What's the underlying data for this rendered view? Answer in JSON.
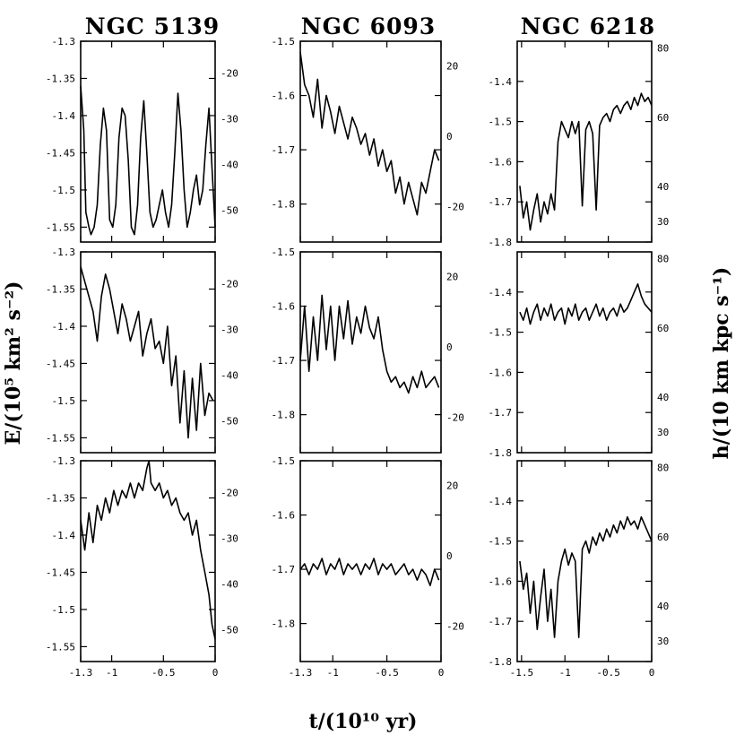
{
  "figure": {
    "x_label": "t/(10¹⁰ yr)",
    "y_left_label": "E/(10⁵ km² s⁻²)",
    "y_right_label": "h/(10 km kpc s⁻¹)",
    "column_titles": [
      "NGC 5139",
      "NGC 6093",
      "NGC 6218"
    ]
  },
  "chart_data": [
    {
      "type": "line",
      "cluster": "NGC 5139",
      "row": 1,
      "xlim": [
        -1.3,
        0
      ],
      "ylim": [
        -1.57,
        -1.3
      ],
      "ylim_right": [
        -57,
        -13
      ],
      "xticks": [
        -1.3,
        -1,
        -0.5,
        0
      ],
      "xtick_labels": [
        "-1.3",
        "-1",
        "-0.5",
        "0"
      ],
      "yticks": [
        -1.3,
        -1.35,
        -1.4,
        -1.45,
        -1.5,
        -1.55
      ],
      "ytick_labels": [
        "-1.3",
        "-1.35",
        "-1.4",
        "-1.45",
        "-1.5",
        "-1.55"
      ],
      "yticks_right": [
        -20,
        -30,
        -40,
        -50
      ],
      "ytick_right_labels": [
        "-20",
        "-30",
        "-40",
        "-50"
      ],
      "x": [
        -1.3,
        -1.27,
        -1.25,
        -1.22,
        -1.2,
        -1.17,
        -1.14,
        -1.11,
        -1.08,
        -1.05,
        -1.02,
        -0.99,
        -0.96,
        -0.93,
        -0.9,
        -0.87,
        -0.84,
        -0.81,
        -0.78,
        -0.75,
        -0.72,
        -0.69,
        -0.66,
        -0.63,
        -0.6,
        -0.57,
        -0.54,
        -0.51,
        -0.48,
        -0.45,
        -0.42,
        -0.39,
        -0.36,
        -0.33,
        -0.3,
        -0.27,
        -0.24,
        -0.21,
        -0.18,
        -0.15,
        -0.12,
        -0.09,
        -0.06,
        -0.03,
        0
      ],
      "values": [
        -1.36,
        -1.42,
        -1.53,
        -1.55,
        -1.56,
        -1.55,
        -1.52,
        -1.44,
        -1.39,
        -1.42,
        -1.54,
        -1.55,
        -1.52,
        -1.43,
        -1.39,
        -1.4,
        -1.46,
        -1.55,
        -1.56,
        -1.52,
        -1.43,
        -1.38,
        -1.45,
        -1.53,
        -1.55,
        -1.54,
        -1.52,
        -1.5,
        -1.53,
        -1.55,
        -1.52,
        -1.45,
        -1.37,
        -1.42,
        -1.5,
        -1.55,
        -1.53,
        -1.5,
        -1.48,
        -1.52,
        -1.5,
        -1.44,
        -1.39,
        -1.47,
        -1.55
      ]
    },
    {
      "type": "line",
      "cluster": "NGC 6093",
      "row": 1,
      "xlim": [
        -1.3,
        0
      ],
      "ylim": [
        -1.87,
        -1.5
      ],
      "ylim_right": [
        -30,
        27
      ],
      "xticks": [
        -1.3,
        -1,
        -0.5,
        0
      ],
      "xtick_labels": [
        "-1.3",
        "-1",
        "-0.5",
        "0"
      ],
      "yticks": [
        -1.5,
        -1.6,
        -1.7,
        -1.8
      ],
      "ytick_labels": [
        "-1.5",
        "-1.6",
        "-1.7",
        "-1.8"
      ],
      "yticks_right": [
        20,
        0,
        -20
      ],
      "ytick_right_labels": [
        "20",
        "0",
        "-20"
      ],
      "x": [
        -1.3,
        -1.26,
        -1.22,
        -1.18,
        -1.14,
        -1.1,
        -1.06,
        -1.02,
        -0.98,
        -0.94,
        -0.9,
        -0.86,
        -0.82,
        -0.78,
        -0.74,
        -0.7,
        -0.66,
        -0.62,
        -0.58,
        -0.54,
        -0.5,
        -0.46,
        -0.42,
        -0.38,
        -0.34,
        -0.3,
        -0.26,
        -0.22,
        -0.18,
        -0.14,
        -0.1,
        -0.06,
        -0.02
      ],
      "values": [
        -1.52,
        -1.58,
        -1.6,
        -1.64,
        -1.57,
        -1.66,
        -1.6,
        -1.63,
        -1.67,
        -1.62,
        -1.65,
        -1.68,
        -1.64,
        -1.66,
        -1.69,
        -1.67,
        -1.71,
        -1.68,
        -1.73,
        -1.7,
        -1.74,
        -1.72,
        -1.78,
        -1.75,
        -1.8,
        -1.76,
        -1.79,
        -1.82,
        -1.76,
        -1.78,
        -1.74,
        -1.7,
        -1.72
      ]
    },
    {
      "type": "line",
      "cluster": "NGC 6218",
      "row": 1,
      "xlim": [
        -1.55,
        0
      ],
      "ylim": [
        -1.8,
        -1.3
      ],
      "ylim_right": [
        24,
        82
      ],
      "xticks": [
        -1.5,
        -1,
        -0.5,
        0
      ],
      "xtick_labels": [
        "-1.5",
        "-1",
        "-0.5",
        "0"
      ],
      "yticks": [
        -1.4,
        -1.5,
        -1.6,
        -1.7,
        -1.8
      ],
      "ytick_labels": [
        "-1.4",
        "-1.5",
        "-1.6",
        "-1.7",
        "-1.8"
      ],
      "yticks_right": [
        80,
        60,
        40,
        30
      ],
      "ytick_right_labels": [
        "80",
        "60",
        "40",
        "30"
      ],
      "x": [
        -1.52,
        -1.48,
        -1.44,
        -1.4,
        -1.36,
        -1.32,
        -1.28,
        -1.24,
        -1.2,
        -1.16,
        -1.12,
        -1.08,
        -1.04,
        -1.0,
        -0.96,
        -0.92,
        -0.88,
        -0.84,
        -0.8,
        -0.76,
        -0.72,
        -0.68,
        -0.64,
        -0.6,
        -0.56,
        -0.52,
        -0.48,
        -0.44,
        -0.4,
        -0.36,
        -0.32,
        -0.28,
        -0.24,
        -0.2,
        -0.16,
        -0.12,
        -0.08,
        -0.04,
        0
      ],
      "values": [
        -1.66,
        -1.74,
        -1.7,
        -1.77,
        -1.72,
        -1.68,
        -1.75,
        -1.7,
        -1.73,
        -1.68,
        -1.72,
        -1.55,
        -1.5,
        -1.52,
        -1.54,
        -1.5,
        -1.53,
        -1.5,
        -1.71,
        -1.52,
        -1.5,
        -1.53,
        -1.72,
        -1.51,
        -1.49,
        -1.48,
        -1.5,
        -1.47,
        -1.46,
        -1.48,
        -1.46,
        -1.45,
        -1.47,
        -1.44,
        -1.46,
        -1.43,
        -1.45,
        -1.44,
        -1.46
      ]
    },
    {
      "type": "line",
      "cluster": "NGC 5139",
      "row": 2,
      "xlim": [
        -1.3,
        0
      ],
      "ylim": [
        -1.57,
        -1.3
      ],
      "ylim_right": [
        -57,
        -13
      ],
      "xticks": [
        -1.3,
        -1,
        -0.5,
        0
      ],
      "xtick_labels": [
        "-1.3",
        "-1",
        "-0.5",
        "0"
      ],
      "yticks": [
        -1.3,
        -1.35,
        -1.4,
        -1.45,
        -1.5,
        -1.55
      ],
      "ytick_labels": [
        "-1.3",
        "-1.35",
        "-1.4",
        "-1.45",
        "-1.5",
        "-1.55"
      ],
      "yticks_right": [
        -20,
        -30,
        -40,
        -50
      ],
      "ytick_right_labels": [
        "-20",
        "-30",
        "-40",
        "-50"
      ],
      "x": [
        -1.3,
        -1.26,
        -1.22,
        -1.18,
        -1.14,
        -1.1,
        -1.06,
        -1.02,
        -0.98,
        -0.94,
        -0.9,
        -0.86,
        -0.82,
        -0.78,
        -0.74,
        -0.7,
        -0.66,
        -0.62,
        -0.58,
        -0.54,
        -0.5,
        -0.46,
        -0.42,
        -0.38,
        -0.34,
        -0.3,
        -0.26,
        -0.22,
        -0.18,
        -0.14,
        -0.1,
        -0.06,
        -0.02
      ],
      "values": [
        -1.32,
        -1.34,
        -1.36,
        -1.38,
        -1.42,
        -1.36,
        -1.33,
        -1.35,
        -1.38,
        -1.41,
        -1.37,
        -1.39,
        -1.42,
        -1.4,
        -1.38,
        -1.44,
        -1.41,
        -1.39,
        -1.43,
        -1.42,
        -1.45,
        -1.4,
        -1.48,
        -1.44,
        -1.53,
        -1.46,
        -1.55,
        -1.47,
        -1.54,
        -1.45,
        -1.52,
        -1.49,
        -1.5
      ]
    },
    {
      "type": "line",
      "cluster": "NGC 6093",
      "row": 2,
      "xlim": [
        -1.3,
        0
      ],
      "ylim": [
        -1.87,
        -1.5
      ],
      "ylim_right": [
        -30,
        27
      ],
      "xticks": [
        -1.3,
        -1,
        -0.5,
        0
      ],
      "xtick_labels": [
        "-1.3",
        "-1",
        "-0.5",
        "0"
      ],
      "yticks": [
        -1.5,
        -1.6,
        -1.7,
        -1.8
      ],
      "ytick_labels": [
        "-1.5",
        "-1.6",
        "-1.7",
        "-1.8"
      ],
      "yticks_right": [
        20,
        0,
        -20
      ],
      "ytick_right_labels": [
        "20",
        "0",
        "-20"
      ],
      "x": [
        -1.3,
        -1.26,
        -1.22,
        -1.18,
        -1.14,
        -1.1,
        -1.06,
        -1.02,
        -0.98,
        -0.94,
        -0.9,
        -0.86,
        -0.82,
        -0.78,
        -0.74,
        -0.7,
        -0.66,
        -0.62,
        -0.58,
        -0.54,
        -0.5,
        -0.46,
        -0.42,
        -0.38,
        -0.34,
        -0.3,
        -0.26,
        -0.22,
        -0.18,
        -0.14,
        -0.1,
        -0.06,
        -0.02
      ],
      "values": [
        -1.7,
        -1.6,
        -1.72,
        -1.62,
        -1.7,
        -1.58,
        -1.68,
        -1.6,
        -1.7,
        -1.6,
        -1.66,
        -1.59,
        -1.67,
        -1.62,
        -1.65,
        -1.6,
        -1.64,
        -1.66,
        -1.62,
        -1.68,
        -1.72,
        -1.74,
        -1.73,
        -1.75,
        -1.74,
        -1.76,
        -1.73,
        -1.75,
        -1.72,
        -1.75,
        -1.74,
        -1.73,
        -1.75
      ]
    },
    {
      "type": "line",
      "cluster": "NGC 6218",
      "row": 2,
      "xlim": [
        -1.55,
        0
      ],
      "ylim": [
        -1.8,
        -1.3
      ],
      "ylim_right": [
        24,
        82
      ],
      "xticks": [
        -1.5,
        -1,
        -0.5,
        0
      ],
      "xtick_labels": [
        "-1.5",
        "-1",
        "-0.5",
        "0"
      ],
      "yticks": [
        -1.4,
        -1.5,
        -1.6,
        -1.7,
        -1.8
      ],
      "ytick_labels": [
        "-1.4",
        "-1.5",
        "-1.6",
        "-1.7",
        "-1.8"
      ],
      "yticks_right": [
        80,
        60,
        40,
        30
      ],
      "ytick_right_labels": [
        "80",
        "60",
        "40",
        "30"
      ],
      "x": [
        -1.52,
        -1.48,
        -1.44,
        -1.4,
        -1.36,
        -1.32,
        -1.28,
        -1.24,
        -1.2,
        -1.16,
        -1.12,
        -1.08,
        -1.04,
        -1.0,
        -0.96,
        -0.92,
        -0.88,
        -0.84,
        -0.8,
        -0.76,
        -0.72,
        -0.68,
        -0.64,
        -0.6,
        -0.56,
        -0.52,
        -0.48,
        -0.44,
        -0.4,
        -0.36,
        -0.32,
        -0.28,
        -0.24,
        -0.2,
        -0.16,
        -0.12,
        -0.08,
        -0.04,
        0
      ],
      "values": [
        -1.45,
        -1.47,
        -1.44,
        -1.48,
        -1.45,
        -1.43,
        -1.47,
        -1.44,
        -1.46,
        -1.43,
        -1.47,
        -1.45,
        -1.44,
        -1.48,
        -1.44,
        -1.46,
        -1.43,
        -1.47,
        -1.45,
        -1.44,
        -1.47,
        -1.45,
        -1.43,
        -1.46,
        -1.44,
        -1.47,
        -1.45,
        -1.44,
        -1.46,
        -1.43,
        -1.45,
        -1.44,
        -1.42,
        -1.4,
        -1.38,
        -1.41,
        -1.43,
        -1.44,
        -1.45
      ]
    },
    {
      "type": "line",
      "cluster": "NGC 5139",
      "row": 3,
      "xlim": [
        -1.3,
        0
      ],
      "ylim": [
        -1.57,
        -1.3
      ],
      "ylim_right": [
        -57,
        -13
      ],
      "xticks": [
        -1.3,
        -1,
        -0.5,
        0
      ],
      "xtick_labels": [
        "-1.3",
        "-1",
        "-0.5",
        "0"
      ],
      "yticks": [
        -1.3,
        -1.35,
        -1.4,
        -1.45,
        -1.5,
        -1.55
      ],
      "ytick_labels": [
        "-1.3",
        "-1.35",
        "-1.4",
        "-1.45",
        "-1.5",
        "-1.55"
      ],
      "yticks_right": [
        -20,
        -30,
        -40,
        -50
      ],
      "ytick_right_labels": [
        "-20",
        "-30",
        "-40",
        "-50"
      ],
      "x": [
        -1.3,
        -1.26,
        -1.22,
        -1.18,
        -1.14,
        -1.1,
        -1.06,
        -1.02,
        -0.98,
        -0.94,
        -0.9,
        -0.86,
        -0.82,
        -0.78,
        -0.74,
        -0.7,
        -0.66,
        -0.64,
        -0.62,
        -0.58,
        -0.54,
        -0.5,
        -0.46,
        -0.42,
        -0.38,
        -0.34,
        -0.3,
        -0.26,
        -0.22,
        -0.18,
        -0.14,
        -0.1,
        -0.06,
        -0.03,
        0
      ],
      "values": [
        -1.38,
        -1.42,
        -1.37,
        -1.41,
        -1.36,
        -1.38,
        -1.35,
        -1.37,
        -1.34,
        -1.36,
        -1.34,
        -1.35,
        -1.33,
        -1.35,
        -1.33,
        -1.34,
        -1.31,
        -1.3,
        -1.33,
        -1.34,
        -1.33,
        -1.35,
        -1.34,
        -1.36,
        -1.35,
        -1.37,
        -1.38,
        -1.37,
        -1.4,
        -1.38,
        -1.42,
        -1.45,
        -1.48,
        -1.52,
        -1.54
      ]
    },
    {
      "type": "line",
      "cluster": "NGC 6093",
      "row": 3,
      "xlim": [
        -1.3,
        0
      ],
      "ylim": [
        -1.87,
        -1.5
      ],
      "ylim_right": [
        -30,
        27
      ],
      "xticks": [
        -1.3,
        -1,
        -0.5,
        0
      ],
      "xtick_labels": [
        "-1.3",
        "-1",
        "-0.5",
        "0"
      ],
      "yticks": [
        -1.5,
        -1.6,
        -1.7,
        -1.8
      ],
      "ytick_labels": [
        "-1.5",
        "-1.6",
        "-1.7",
        "-1.8"
      ],
      "yticks_right": [
        20,
        0,
        -20
      ],
      "ytick_right_labels": [
        "20",
        "0",
        "-20"
      ],
      "x": [
        -1.3,
        -1.26,
        -1.22,
        -1.18,
        -1.14,
        -1.1,
        -1.06,
        -1.02,
        -0.98,
        -0.94,
        -0.9,
        -0.86,
        -0.82,
        -0.78,
        -0.74,
        -0.7,
        -0.66,
        -0.62,
        -0.58,
        -0.54,
        -0.5,
        -0.46,
        -0.42,
        -0.38,
        -0.34,
        -0.3,
        -0.26,
        -0.22,
        -0.18,
        -0.14,
        -0.1,
        -0.06,
        -0.02
      ],
      "values": [
        -1.7,
        -1.69,
        -1.71,
        -1.69,
        -1.7,
        -1.68,
        -1.71,
        -1.69,
        -1.7,
        -1.68,
        -1.71,
        -1.69,
        -1.7,
        -1.69,
        -1.71,
        -1.69,
        -1.7,
        -1.68,
        -1.71,
        -1.69,
        -1.7,
        -1.69,
        -1.71,
        -1.7,
        -1.69,
        -1.71,
        -1.7,
        -1.72,
        -1.7,
        -1.71,
        -1.73,
        -1.7,
        -1.72
      ]
    },
    {
      "type": "line",
      "cluster": "NGC 6218",
      "row": 3,
      "xlim": [
        -1.55,
        0
      ],
      "ylim": [
        -1.8,
        -1.3
      ],
      "ylim_right": [
        24,
        82
      ],
      "xticks": [
        -1.5,
        -1,
        -0.5,
        0
      ],
      "xtick_labels": [
        "-1.5",
        "-1",
        "-0.5",
        "0"
      ],
      "yticks": [
        -1.4,
        -1.5,
        -1.6,
        -1.7,
        -1.8
      ],
      "ytick_labels": [
        "-1.4",
        "-1.5",
        "-1.6",
        "-1.7",
        "-1.8"
      ],
      "yticks_right": [
        80,
        60,
        40,
        30
      ],
      "ytick_right_labels": [
        "80",
        "60",
        "40",
        "30"
      ],
      "x": [
        -1.52,
        -1.48,
        -1.44,
        -1.4,
        -1.36,
        -1.32,
        -1.28,
        -1.24,
        -1.2,
        -1.16,
        -1.12,
        -1.08,
        -1.04,
        -1.0,
        -0.96,
        -0.92,
        -0.88,
        -0.84,
        -0.8,
        -0.76,
        -0.72,
        -0.68,
        -0.64,
        -0.6,
        -0.56,
        -0.52,
        -0.48,
        -0.44,
        -0.4,
        -0.36,
        -0.32,
        -0.28,
        -0.24,
        -0.2,
        -0.16,
        -0.12,
        -0.08,
        -0.04,
        0
      ],
      "values": [
        -1.55,
        -1.62,
        -1.58,
        -1.68,
        -1.6,
        -1.72,
        -1.64,
        -1.57,
        -1.7,
        -1.62,
        -1.74,
        -1.6,
        -1.55,
        -1.52,
        -1.56,
        -1.53,
        -1.55,
        -1.74,
        -1.52,
        -1.5,
        -1.53,
        -1.49,
        -1.51,
        -1.48,
        -1.5,
        -1.47,
        -1.49,
        -1.46,
        -1.48,
        -1.45,
        -1.47,
        -1.44,
        -1.46,
        -1.45,
        -1.47,
        -1.44,
        -1.46,
        -1.48,
        -1.5
      ]
    }
  ]
}
